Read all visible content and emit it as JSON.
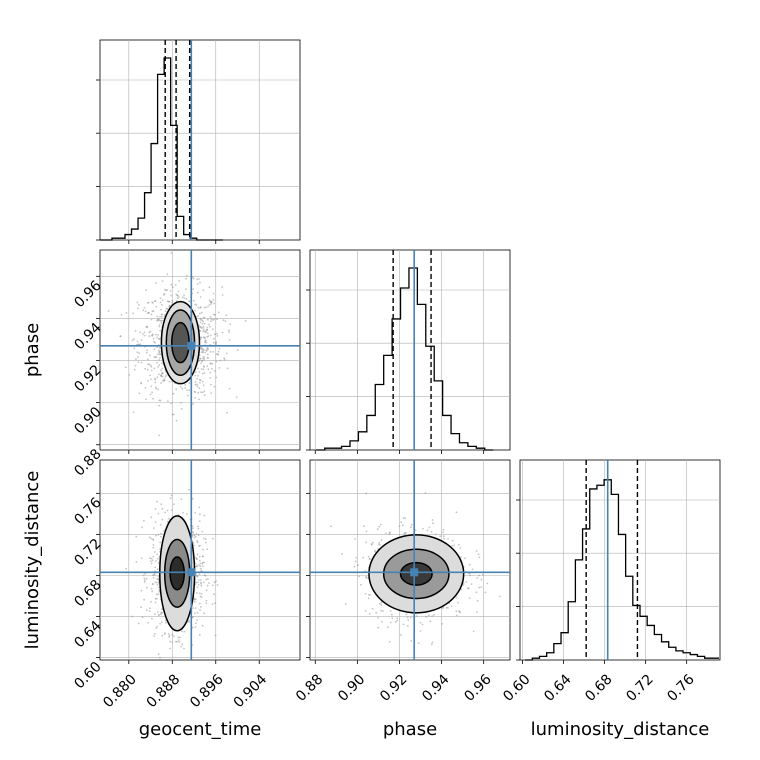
{
  "chart_data": {
    "type": "corner",
    "parameters": [
      "geocent_time",
      "phase",
      "luminosity_distance"
    ],
    "truths": {
      "geocent_time": 0.8915,
      "phase": 0.927,
      "luminosity_distance": 0.683
    },
    "quantiles": {
      "geocent_time": [
        0.8867,
        0.8887,
        0.8912
      ],
      "phase": [
        0.917,
        0.927,
        0.935
      ],
      "luminosity_distance": [
        0.662,
        0.683,
        0.712
      ]
    },
    "ranges": {
      "geocent_time": [
        0.8747,
        0.9115
      ],
      "phase": [
        0.8775,
        0.9725
      ],
      "luminosity_distance": [
        0.5975,
        0.7925
      ]
    },
    "ticks": {
      "geocent_time": [
        "0.880",
        "0.888",
        "0.896",
        "0.904"
      ],
      "phase": [
        "0.88",
        "0.90",
        "0.92",
        "0.94",
        "0.96"
      ],
      "luminosity_distance": [
        "0.60",
        "0.64",
        "0.68",
        "0.72",
        "0.76"
      ]
    },
    "histograms": {
      "geocent_time": {
        "edges": [
          0.8745,
          0.8757,
          0.8769,
          0.8781,
          0.8793,
          0.8805,
          0.8817,
          0.8829,
          0.8841,
          0.8853,
          0.8865,
          0.8877,
          0.8889,
          0.8901,
          0.8913,
          0.8925,
          0.8937,
          0.8949,
          0.8961,
          0.8973
        ],
        "counts": [
          0,
          0,
          0.01,
          0.01,
          0.03,
          0.06,
          0.12,
          0.26,
          0.53,
          0.91,
          1.0,
          0.63,
          0.13,
          0.03,
          0.01,
          0,
          0,
          0,
          0
        ]
      },
      "phase": {
        "edges": [
          0.8805,
          0.8845,
          0.8885,
          0.8925,
          0.8965,
          0.9005,
          0.9045,
          0.9085,
          0.9125,
          0.9165,
          0.9205,
          0.9245,
          0.9285,
          0.9325,
          0.9365,
          0.9405,
          0.9445,
          0.9485,
          0.9525,
          0.9565,
          0.9605,
          0.9645
        ],
        "counts": [
          0,
          0.01,
          0.01,
          0.02,
          0.05,
          0.1,
          0.19,
          0.36,
          0.52,
          0.72,
          0.89,
          1.0,
          0.8,
          0.57,
          0.38,
          0.19,
          0.09,
          0.04,
          0.02,
          0.01,
          0
        ]
      },
      "luminosity_distance": {
        "edges": [
          0.6025,
          0.6095,
          0.6165,
          0.6235,
          0.6305,
          0.6375,
          0.6445,
          0.6515,
          0.6585,
          0.6655,
          0.6725,
          0.6795,
          0.6865,
          0.6935,
          0.7005,
          0.7075,
          0.7145,
          0.7215,
          0.7285,
          0.7355,
          0.7425,
          0.7495,
          0.7565,
          0.7635,
          0.7705,
          0.7775,
          0.7845,
          0.7915
        ],
        "counts": [
          0.0,
          0.01,
          0.02,
          0.04,
          0.09,
          0.15,
          0.32,
          0.55,
          0.72,
          0.94,
          0.96,
          0.99,
          0.91,
          0.69,
          0.46,
          0.3,
          0.24,
          0.19,
          0.14,
          0.1,
          0.07,
          0.05,
          0.04,
          0.03,
          0.02,
          0.01,
          0.01
        ]
      }
    },
    "contours": {
      "phase_vs_geocent_time": {
        "center": [
          0.8895,
          0.9285
        ],
        "levels": [
          {
            "sx": 0.0016,
            "sy": 0.0095,
            "fill": "#555555"
          },
          {
            "sx": 0.0026,
            "sy": 0.0155,
            "fill": "#a6a6a6"
          },
          {
            "sx": 0.0035,
            "sy": 0.0195,
            "fill": "#e1e1e1"
          }
        ]
      },
      "luminosity_distance_vs_geocent_time": {
        "center": [
          0.8889,
          0.682
        ],
        "levels": [
          {
            "sx": 0.0013,
            "sy": 0.016,
            "fill": "#2c2c2c"
          },
          {
            "sx": 0.0023,
            "sy": 0.033,
            "fill": "#8a8a8a"
          },
          {
            "sx": 0.0032,
            "sy": 0.056,
            "fill": "#dcdcdc"
          }
        ]
      },
      "luminosity_distance_vs_phase": {
        "center": [
          0.928,
          0.6815
        ],
        "levels": [
          {
            "sx": 0.0075,
            "sy": 0.011,
            "fill": "#3a3a3a"
          },
          {
            "sx": 0.0155,
            "sy": 0.024,
            "fill": "#9a9a9a"
          },
          {
            "sx": 0.0225,
            "sy": 0.038,
            "fill": "#dcdcdc"
          }
        ]
      }
    },
    "scatter_spread": {
      "phase_vs_geocent_time": [
        0.0038,
        0.013
      ],
      "luminosity_distance_vs_geocent_time": [
        0.0025,
        0.028
      ],
      "luminosity_distance_vs_phase": [
        0.012,
        0.022
      ]
    },
    "colors": {
      "truth": "#4682b4",
      "line": "#000000",
      "grid": "#b0b0b0",
      "scatter": "#8c8c8c"
    },
    "grid": true
  }
}
